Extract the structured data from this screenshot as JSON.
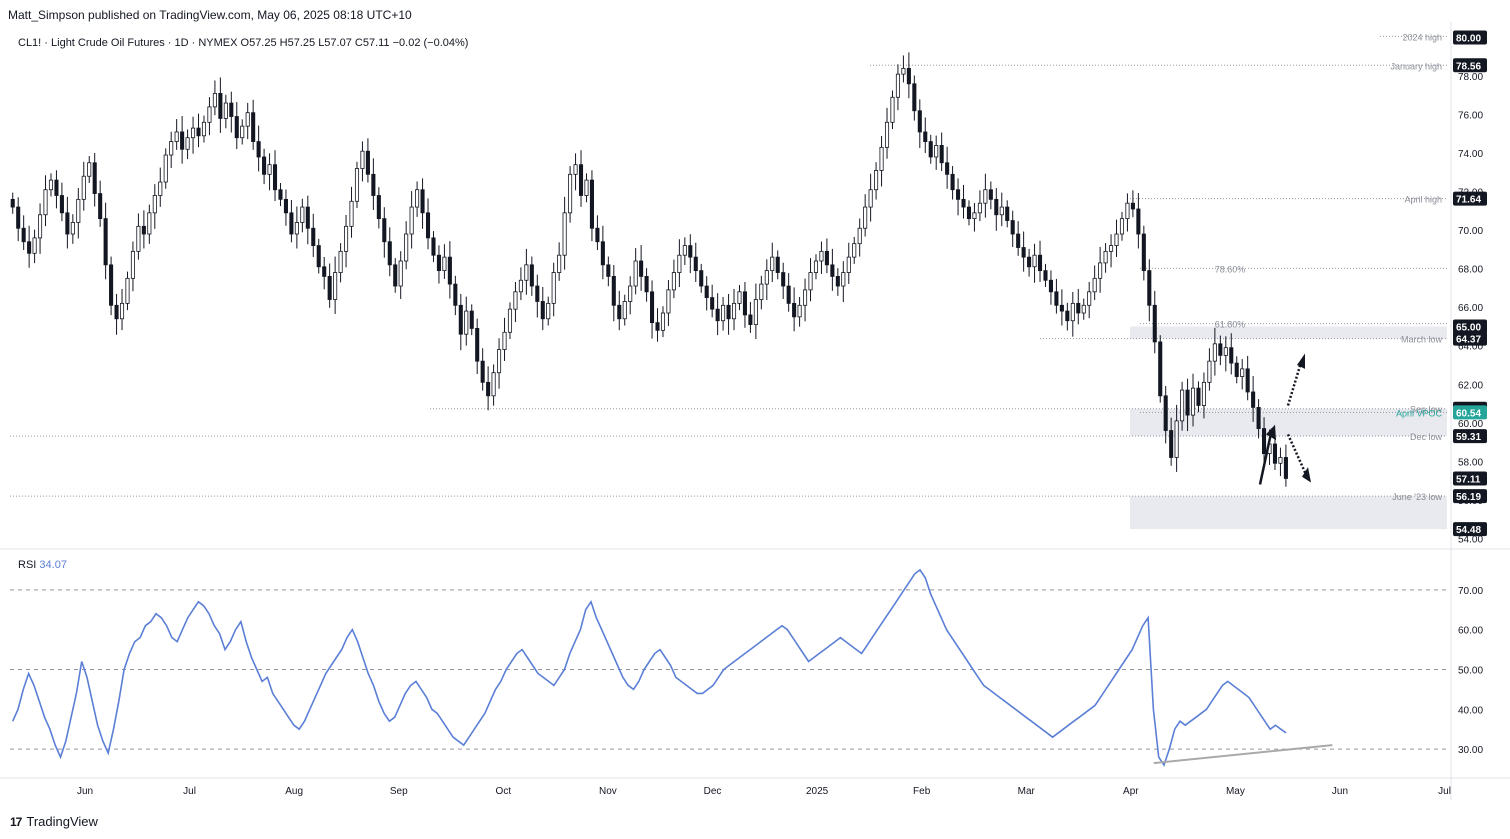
{
  "publisher_line": "Matt_Simpson published on TradingView.com, May 06, 2025 08:18 UTC+10",
  "brand": {
    "logo_glyph": "17",
    "name": "TradingView"
  },
  "colors": {
    "up_candle": "#ffffff",
    "down_candle": "#131722",
    "wick": "#131722",
    "rsi_line": "#5b7fd6",
    "rsi_trend": "#a9a9a9",
    "zone_fill": "#e9eaef",
    "guide_dot": "#9598a1",
    "label_bg": "#131722",
    "highlight_bg": "#26a69a",
    "axis_text": "#131722",
    "annotation_text": "#8a8e98"
  },
  "chart_data": [
    {
      "type": "candlestick",
      "header": {
        "symbol": "CL1!",
        "description": "Light Crude Oil Futures",
        "interval": "1D",
        "exchange": "NYMEX",
        "open": "O57.25",
        "high": "H57.25",
        "low": "L57.07",
        "close": "C57.11",
        "change": "−0.02 (−0.04%)"
      },
      "ylim": [
        53.5,
        80.6
      ],
      "y_ticks": [
        "54.00",
        "56.00",
        "58.00",
        "60.00",
        "62.00",
        "64.00",
        "66.00",
        "68.00",
        "70.00",
        "72.00",
        "74.00",
        "76.00",
        "78.00",
        "80.00"
      ],
      "x_ticks": [
        {
          "label": "Jun",
          "month_index": 1
        },
        {
          "label": "Jul",
          "month_index": 2
        },
        {
          "label": "Aug",
          "month_index": 3
        },
        {
          "label": "Sep",
          "month_index": 4
        },
        {
          "label": "Oct",
          "month_index": 5
        },
        {
          "label": "Nov",
          "month_index": 6
        },
        {
          "label": "Dec",
          "month_index": 7
        },
        {
          "label": "2025",
          "month_index": 8
        },
        {
          "label": "Feb",
          "month_index": 9
        },
        {
          "label": "Mar",
          "month_index": 10
        },
        {
          "label": "Apr",
          "month_index": 11
        },
        {
          "label": "May",
          "month_index": 12
        },
        {
          "label": "Jun",
          "month_index": 13
        },
        {
          "label": "Jul",
          "month_index": 14
        }
      ],
      "closes": [
        71.2,
        70.1,
        69.4,
        68.8,
        69.6,
        70.8,
        72.1,
        72.6,
        71.8,
        70.9,
        69.8,
        70.4,
        71.6,
        72.8,
        73.5,
        71.9,
        70.6,
        68.2,
        66.1,
        65.4,
        66.2,
        67.5,
        68.9,
        70.2,
        69.8,
        70.9,
        71.8,
        72.5,
        73.9,
        74.6,
        75.1,
        74.2,
        74.8,
        75.3,
        74.9,
        75.6,
        76.4,
        77.1,
        75.8,
        76.6,
        75.9,
        74.8,
        75.4,
        76.1,
        74.6,
        73.8,
        72.9,
        73.4,
        72.1,
        71.6,
        70.9,
        69.8,
        70.4,
        71.2,
        70.1,
        69.2,
        68.1,
        67.6,
        66.4,
        67.8,
        68.9,
        70.2,
        71.5,
        73.2,
        74.1,
        72.9,
        71.8,
        70.6,
        69.4,
        68.2,
        67.1,
        68.4,
        69.8,
        71.2,
        72.1,
        70.9,
        69.6,
        68.7,
        67.9,
        68.6,
        67.2,
        66.1,
        64.6,
        65.8,
        64.9,
        63.2,
        62.1,
        61.4,
        62.6,
        63.8,
        64.7,
        65.9,
        66.8,
        67.4,
        68.2,
        67.1,
        66.3,
        65.4,
        66.2,
        67.8,
        68.7,
        70.9,
        72.9,
        73.4,
        71.8,
        72.6,
        70.1,
        69.4,
        68.2,
        67.6,
        66.1,
        65.4,
        66.3,
        67.1,
        68.4,
        67.6,
        66.8,
        65.2,
        64.8,
        65.7,
        66.9,
        67.8,
        68.7,
        69.2,
        68.6,
        67.9,
        67.1,
        66.5,
        65.9,
        65.3,
        66.1,
        65.4,
        66.2,
        66.8,
        65.6,
        65.1,
        66.4,
        67.2,
        67.9,
        68.6,
        67.8,
        67.1,
        66.2,
        65.5,
        66.1,
        66.9,
        67.8,
        68.4,
        68.9,
        68.2,
        67.6,
        67.1,
        67.8,
        68.6,
        69.3,
        70.1,
        71.2,
        72.1,
        73.1,
        74.3,
        75.6,
        76.9,
        78.1,
        78.4,
        77.6,
        76.2,
        75.1,
        74.6,
        73.8,
        74.4,
        73.5,
        72.9,
        72.1,
        71.6,
        71.2,
        70.6,
        70.9,
        71.4,
        72.1,
        71.6,
        70.8,
        71.2,
        70.5,
        69.8,
        69.1,
        68.6,
        68.1,
        68.7,
        67.9,
        67.4,
        66.8,
        66.1,
        65.8,
        65.3,
        66.2,
        65.7,
        66.1,
        66.8,
        67.5,
        68.3,
        68.9,
        69.2,
        69.8,
        70.6,
        71.4,
        71.1,
        69.8,
        67.9,
        66.1,
        64.2,
        61.4,
        59.6,
        58.2,
        60.1,
        61.7,
        60.4,
        61.8,
        60.9,
        62.1,
        63.2,
        64.1,
        63.5,
        63.9,
        63.1,
        62.4,
        62.8,
        61.6,
        60.8,
        59.7,
        58.4,
        58.9,
        57.9,
        58.2,
        57.11
      ],
      "annotations": [
        {
          "label": "2024 high",
          "price": 80.06
        },
        {
          "label": "January high",
          "price": 78.56
        },
        {
          "label": "April high",
          "price": 71.64
        },
        {
          "label": "78.60%",
          "price": 68.02
        },
        {
          "label": "61.80%",
          "price": 65.15
        },
        {
          "label": "March low",
          "price": 64.37
        },
        {
          "label": "Sep low",
          "price": 60.73
        },
        {
          "label": "April VPOC",
          "price": 60.54
        },
        {
          "label": "Dec low",
          "price": 59.31
        },
        {
          "label": "June '23 low",
          "price": 56.19
        }
      ],
      "price_labels": [
        {
          "text": "80.00",
          "price": 80.0,
          "style": "dark"
        },
        {
          "text": "78.56",
          "price": 78.56,
          "style": "dark"
        },
        {
          "text": "71.64",
          "price": 71.64,
          "style": "dark"
        },
        {
          "text": "65.00",
          "price": 65.0,
          "style": "dark"
        },
        {
          "text": "64.37",
          "price": 64.37,
          "style": "dark"
        },
        {
          "text": "60.73",
          "price": 60.73,
          "style": "dark"
        },
        {
          "text": "60.54",
          "price": 60.54,
          "style": "highlight"
        },
        {
          "text": "59.31",
          "price": 59.31,
          "style": "dark"
        },
        {
          "text": "57.11",
          "price": 57.11,
          "style": "dark"
        },
        {
          "text": "56.19",
          "price": 56.19,
          "style": "dark"
        },
        {
          "text": "54.48",
          "price": 54.48,
          "style": "dark"
        }
      ],
      "zones": [
        {
          "name": "march-low-zone",
          "from": 64.37,
          "to": 65.0
        },
        {
          "name": "sep-dec-low-zone",
          "from": 59.31,
          "to": 60.73
        },
        {
          "name": "june23-low-zone",
          "from": 54.48,
          "to": 56.19
        }
      ]
    },
    {
      "type": "line",
      "name": "RSI",
      "current_value": "34.07",
      "ylim": [
        23,
        80
      ],
      "y_ticks": [
        "30.00",
        "40.00",
        "50.00",
        "60.00",
        "70.00"
      ],
      "guide_levels": [
        30,
        50,
        70
      ],
      "values": [
        37,
        40,
        45,
        49,
        46,
        42,
        38,
        35,
        31,
        28,
        32,
        38,
        44,
        52,
        48,
        42,
        36,
        32,
        29,
        35,
        42,
        50,
        54,
        57,
        58,
        61,
        62,
        64,
        63,
        61,
        58,
        57,
        60,
        63,
        65,
        67,
        66,
        64,
        61,
        59,
        55,
        57,
        60,
        62,
        57,
        53,
        50,
        47,
        48,
        44,
        42,
        40,
        38,
        36,
        35,
        37,
        40,
        43,
        46,
        49,
        51,
        53,
        55,
        58,
        60,
        57,
        53,
        49,
        46,
        42,
        39,
        37,
        38,
        41,
        44,
        46,
        47,
        45,
        43,
        40,
        39,
        37,
        35,
        33,
        32,
        31,
        33,
        35,
        37,
        39,
        42,
        45,
        47,
        50,
        52,
        54,
        55,
        53,
        51,
        49,
        48,
        47,
        46,
        48,
        50,
        54,
        57,
        60,
        65,
        67,
        63,
        60,
        57,
        54,
        51,
        48,
        46,
        45,
        47,
        50,
        52,
        54,
        55,
        53,
        51,
        48,
        47,
        46,
        45,
        44,
        44,
        45,
        46,
        48,
        50,
        51,
        52,
        53,
        54,
        55,
        56,
        57,
        58,
        59,
        60,
        61,
        60,
        58,
        56,
        54,
        52,
        53,
        54,
        55,
        56,
        57,
        58,
        57,
        56,
        55,
        54,
        56,
        58,
        60,
        62,
        64,
        66,
        68,
        70,
        72,
        74,
        75,
        73,
        69,
        66,
        63,
        60,
        58,
        56,
        54,
        52,
        50,
        48,
        46,
        45,
        44,
        43,
        42,
        41,
        40,
        39,
        38,
        37,
        36,
        35,
        34,
        33,
        34,
        35,
        36,
        37,
        38,
        39,
        40,
        41,
        43,
        45,
        47,
        49,
        51,
        53,
        55,
        58,
        61,
        63,
        40,
        28,
        26,
        30,
        35,
        37,
        36,
        37,
        38,
        39,
        40,
        42,
        44,
        46,
        47,
        46,
        45,
        44,
        43,
        41,
        39,
        37,
        35,
        36,
        35,
        34.07
      ],
      "trendline": {
        "from_index": 216,
        "from_value": 27,
        "to_index": 244,
        "to_value": 31
      }
    }
  ]
}
